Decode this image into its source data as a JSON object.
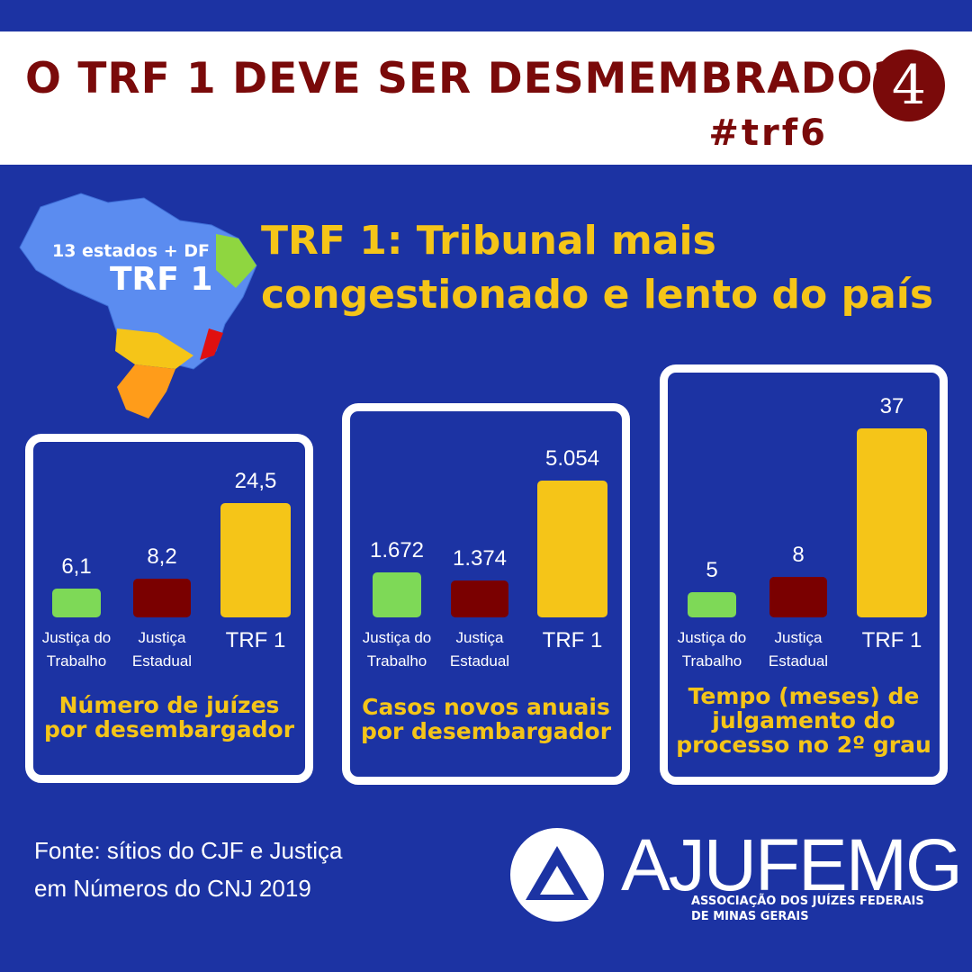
{
  "header": {
    "title": "O TRF 1 DEVE SER DESMEMBRADO?",
    "hashtag": "#trf6",
    "number": "4"
  },
  "map": {
    "label": "13 estados + DF",
    "name": "TRF 1"
  },
  "headline": [
    "TRF 1: Tribunal mais",
    "congestionado e lento do país"
  ],
  "chart_data": [
    {
      "type": "bar",
      "title": "Número de juízes por desembargador",
      "categories": [
        "Justiça do Trabalho",
        "Justiça Estadual",
        "TRF 1"
      ],
      "values": [
        6.1,
        8.2,
        24.5
      ],
      "value_labels": [
        "6,1",
        "8,2",
        "24,5"
      ],
      "colors": [
        "#7ed957",
        "#7a0000",
        "#f5c518"
      ]
    },
    {
      "type": "bar",
      "title": "Casos novos anuais por desembargador",
      "categories": [
        "Justiça do Trabalho",
        "Justiça Estadual",
        "TRF 1"
      ],
      "values": [
        1672,
        1374,
        5054
      ],
      "value_labels": [
        "1.672",
        "1.374",
        "5.054"
      ],
      "colors": [
        "#7ed957",
        "#7a0000",
        "#f5c518"
      ]
    },
    {
      "type": "bar",
      "title": "Tempo (meses) de julgamento do processo no 2º grau",
      "categories": [
        "Justiça do Trabalho",
        "Justiça Estadual",
        "TRF 1"
      ],
      "values": [
        5,
        8,
        37
      ],
      "colors": [
        "#7ed957",
        "#7a0000",
        "#f5c518"
      ]
    }
  ],
  "source": [
    "Fonte: sítios do CJF e Justiça",
    "em Números do CNJ 2019"
  ],
  "logo": {
    "name": "AJUFEMG",
    "tagline": [
      "ASSOCIAÇÃO DOS JUÍZES FEDERAIS",
      "DE MINAS GERAIS"
    ]
  }
}
